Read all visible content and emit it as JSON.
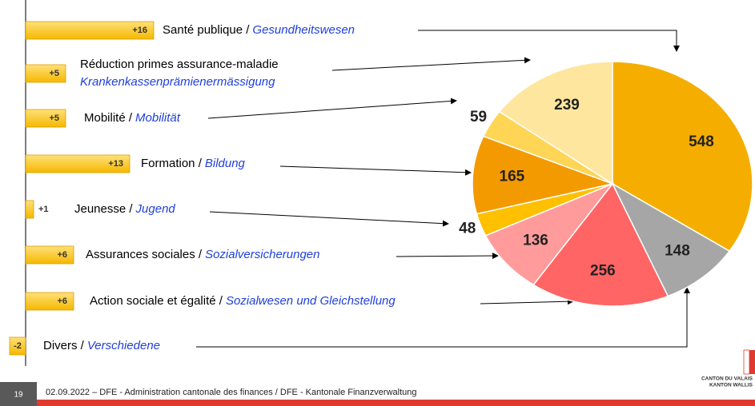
{
  "chart_data": [
    {
      "type": "hbar",
      "categories": [
        "Santé publique /",
        "Réduction primes assurance-maladie",
        "Mobilité /",
        "Formation /",
        "Jeunesse /",
        "Assurances sociales /",
        "Action sociale et égalité /",
        "Divers /"
      ],
      "categories_de": [
        "Gesundheitswesen",
        "Krankenkassenprämienermässigung",
        "Mobilität",
        "Bildung",
        "Jugend",
        "Sozialversicherungen",
        "Sozialwesen und Gleichstellung",
        "Verschiedene"
      ],
      "values": [
        16,
        5,
        5,
        13,
        1,
        6,
        6,
        -2
      ],
      "value_labels": [
        "+16",
        "+5",
        "+5",
        "+13",
        "+1",
        "+6",
        "+6",
        "-2"
      ],
      "color": "#FFC000"
    },
    {
      "type": "pie",
      "values": [
        548,
        148,
        256,
        136,
        48,
        165,
        59,
        239
      ],
      "colors": [
        "#F5AE00",
        "#A6A6A6",
        "#FF6565",
        "#FF9B9B",
        "#FFC000",
        "#F39A00",
        "#FFD556",
        "#FFE69E"
      ]
    }
  ],
  "footer": {
    "page": "19",
    "text": "02.09.2022 – DFE - Administration cantonale des finances / DFE - Kantonale Finanzverwaltung",
    "logo_1": "CANTON DU VALAIS",
    "logo_2": "KANTON WALLIS"
  }
}
